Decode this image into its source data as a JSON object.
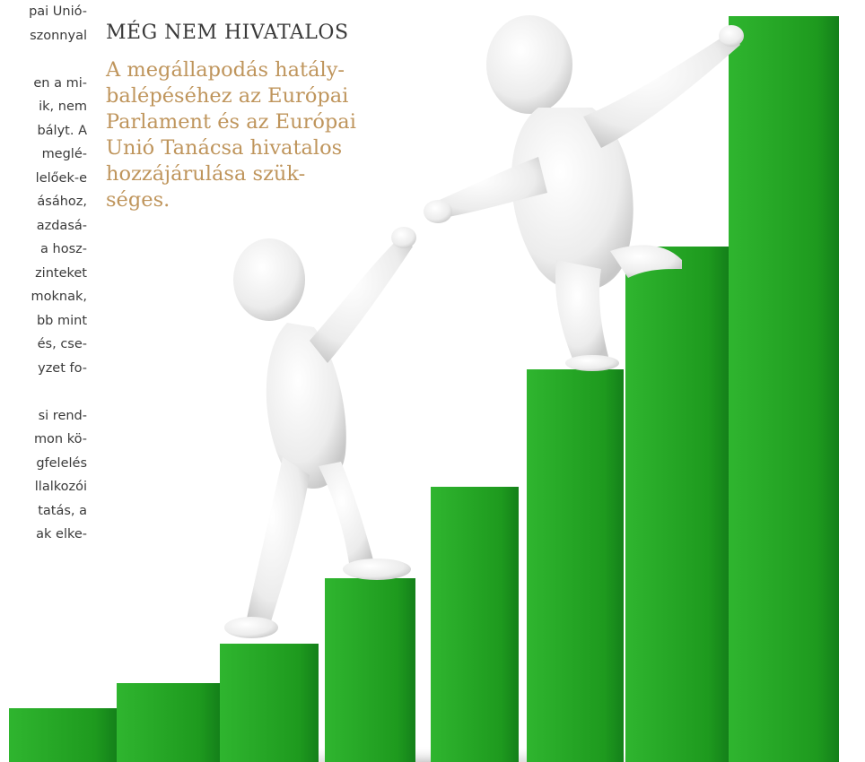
{
  "column": {
    "paragraphs": [
      [
        "pai Unió-",
        "szonnyal"
      ],
      [
        "en a mi-",
        "ik, nem",
        "bályt. A",
        "meglé-",
        "lelőek-e",
        "ásához,",
        "azdasá-",
        "a hosz-",
        "zinteket",
        "moknak,",
        "bb mint",
        "és, cse-",
        "yzet fo-"
      ],
      [
        "si rend-",
        "mon kö-",
        "gfelelés",
        "llalkozói",
        "tatás, a",
        "ak elke-"
      ]
    ]
  },
  "sidebar": {
    "heading": "MÉG NEM HIVATALOS",
    "lines": [
      "A megállapodás hatály-",
      "balépéséhez az Európai",
      "Parlament és az Európai",
      "Unió Tanácsa hivatalos",
      "hozzájárulása szük-",
      "séges."
    ]
  }
}
